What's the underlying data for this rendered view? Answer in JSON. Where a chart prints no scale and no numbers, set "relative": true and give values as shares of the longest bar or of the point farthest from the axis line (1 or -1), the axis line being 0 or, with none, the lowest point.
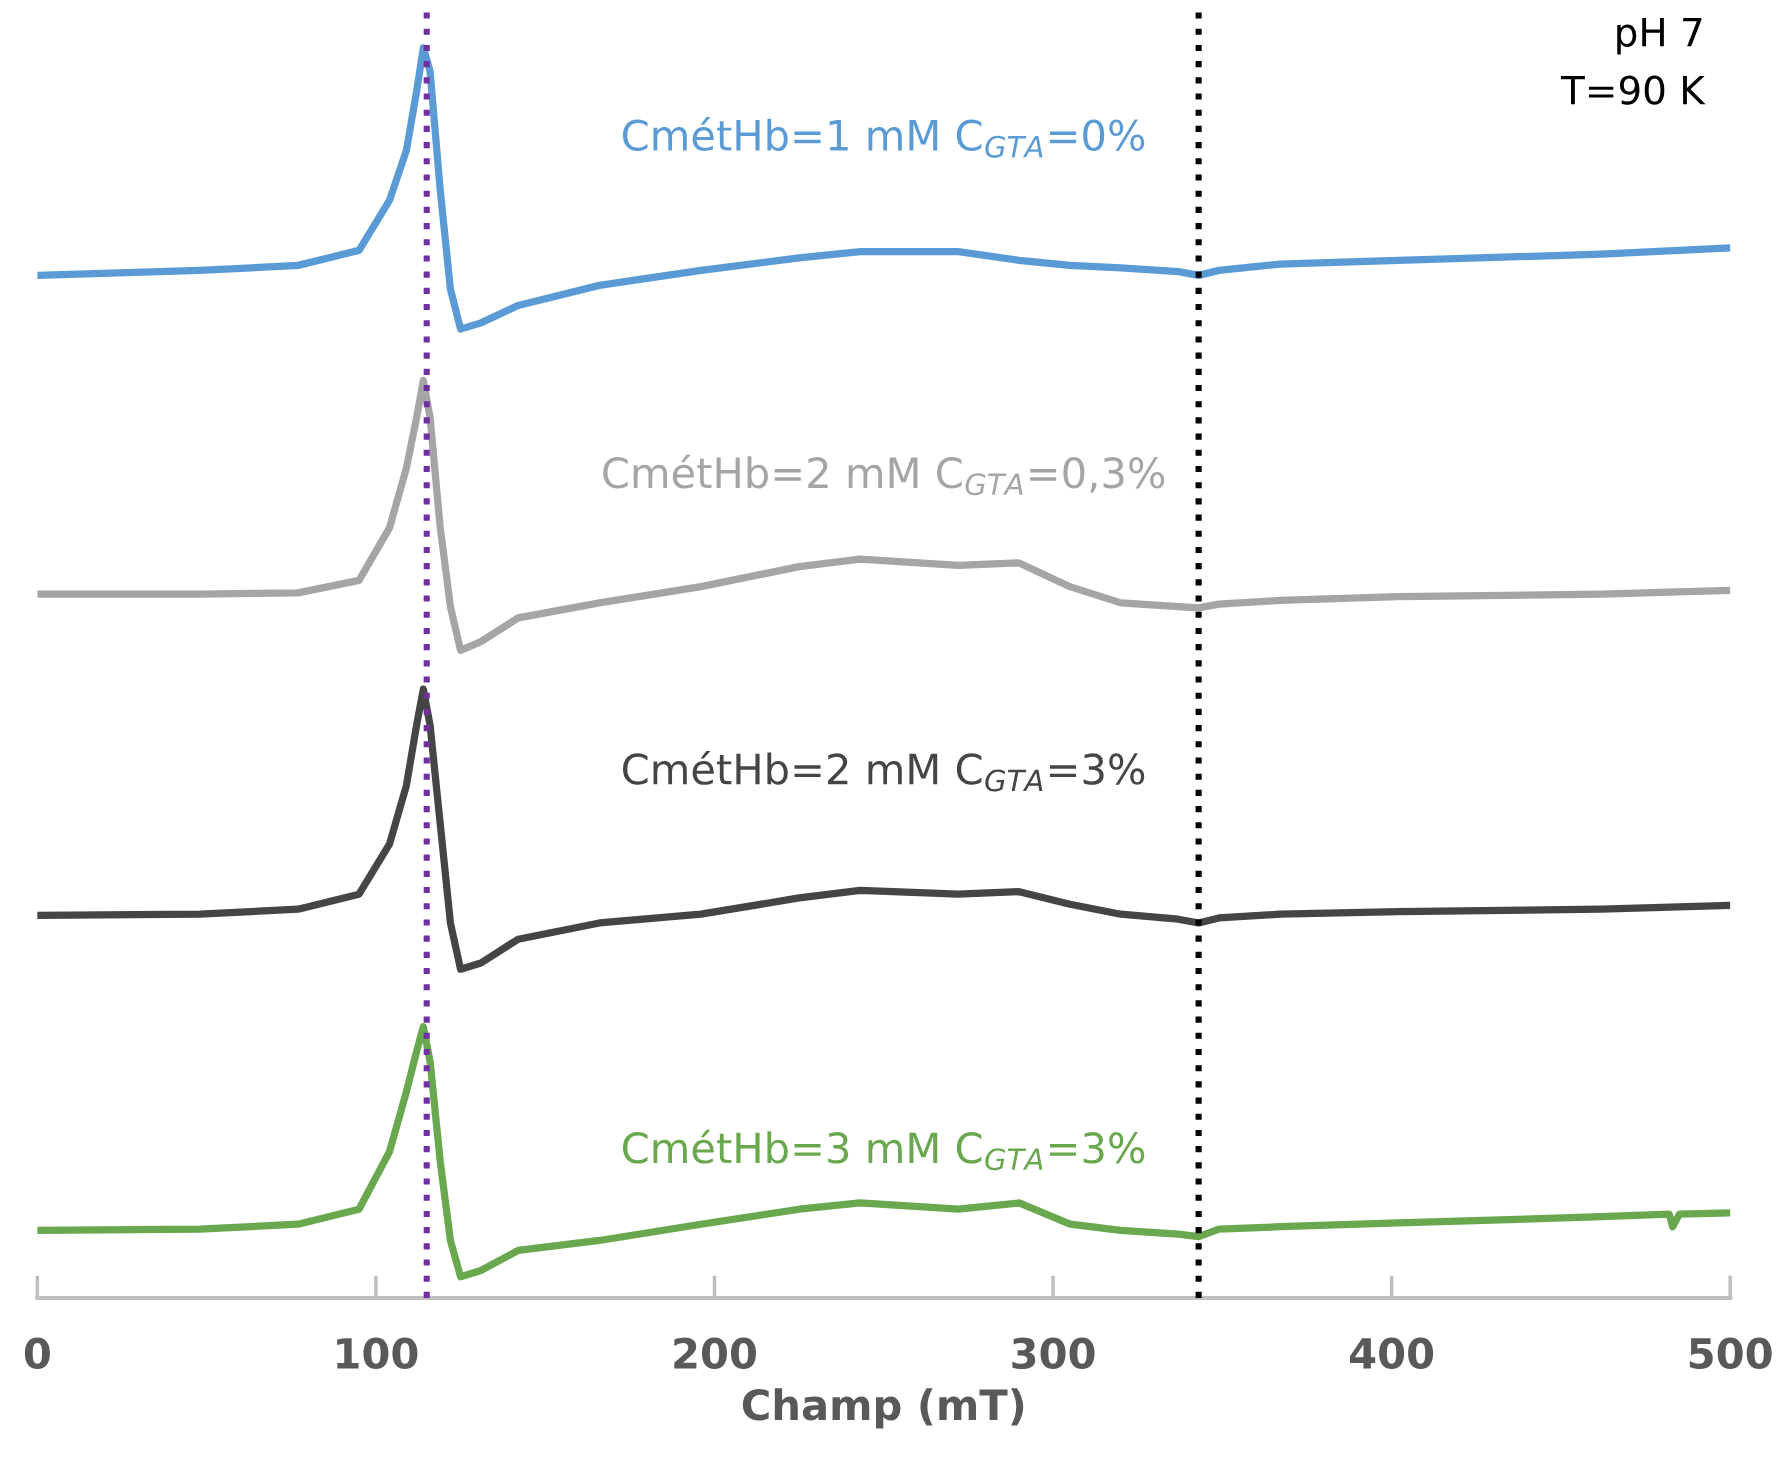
{
  "chart_data": {
    "type": "line",
    "relative": true,
    "xlabel": "Champ (mT)",
    "x": [
      0,
      48,
      77,
      95,
      104,
      109,
      112,
      114,
      116,
      119,
      122,
      125,
      131,
      142,
      166,
      196,
      225,
      243,
      272,
      290,
      305,
      320,
      337,
      343,
      349,
      367,
      402,
      462,
      500
    ],
    "xlim": [
      0,
      500
    ],
    "xticks": [
      0,
      100,
      200,
      300,
      400,
      500
    ],
    "tick_labels": "x",
    "grid": false,
    "legend": false,
    "line_style": "solid",
    "marker": "none",
    "series": [
      {
        "name": "CmétHb=1 mM C$_{GTA}$=0%",
        "color": "#5b9bd5",
        "values": [
          0.818,
          0.822,
          0.826,
          0.838,
          0.878,
          0.918,
          0.965,
          1.0,
          0.981,
          0.886,
          0.807,
          0.775,
          0.78,
          0.794,
          0.81,
          0.822,
          0.832,
          0.837,
          0.837,
          0.83,
          0.826,
          0.824,
          0.821,
          0.818,
          0.822,
          0.827,
          0.83,
          0.835,
          0.84
        ]
      },
      {
        "name": "CmétHb=2 mM C$_{GTA}$=0,3%",
        "color": "#a5a5a5",
        "values": [
          0.563,
          0.563,
          0.564,
          0.574,
          0.616,
          0.664,
          0.704,
          0.734,
          0.704,
          0.616,
          0.553,
          0.518,
          0.525,
          0.544,
          0.556,
          0.569,
          0.585,
          0.591,
          0.586,
          0.588,
          0.569,
          0.556,
          0.553,
          0.552,
          0.555,
          0.558,
          0.561,
          0.563,
          0.566
        ]
      },
      {
        "name": "CmétHb=2 mM C$_{GTA}$=3%",
        "color": "#454545",
        "values": [
          0.306,
          0.307,
          0.311,
          0.323,
          0.363,
          0.41,
          0.458,
          0.487,
          0.458,
          0.379,
          0.3,
          0.263,
          0.268,
          0.287,
          0.3,
          0.307,
          0.32,
          0.326,
          0.323,
          0.325,
          0.315,
          0.307,
          0.303,
          0.3,
          0.304,
          0.307,
          0.309,
          0.311,
          0.314
        ]
      },
      {
        "name": "CmétHb=3 mM C$_{GTA}$=3%",
        "color": "#6aa84f",
        "x": [
          0,
          48,
          77,
          95,
          104,
          109,
          112,
          114,
          116,
          119,
          122,
          125,
          131,
          142,
          166,
          196,
          225,
          243,
          272,
          290,
          305,
          320,
          337,
          343,
          349,
          367,
          402,
          462,
          482,
          483,
          485,
          500
        ],
        "values": [
          0.054,
          0.055,
          0.059,
          0.071,
          0.117,
          0.165,
          0.197,
          0.217,
          0.189,
          0.109,
          0.046,
          0.017,
          0.022,
          0.038,
          0.046,
          0.059,
          0.071,
          0.076,
          0.071,
          0.076,
          0.059,
          0.054,
          0.051,
          0.049,
          0.055,
          0.057,
          0.06,
          0.065,
          0.067,
          0.057,
          0.067,
          0.068
        ]
      }
    ],
    "ref_lines": [
      {
        "axis": "x",
        "value": 115,
        "color": "#7030a0",
        "line_style": "dotted"
      },
      {
        "axis": "x",
        "value": 343,
        "color": "#000000",
        "line_style": "dotted"
      }
    ],
    "annotations": [
      "pH 7",
      "T=90 K"
    ]
  }
}
